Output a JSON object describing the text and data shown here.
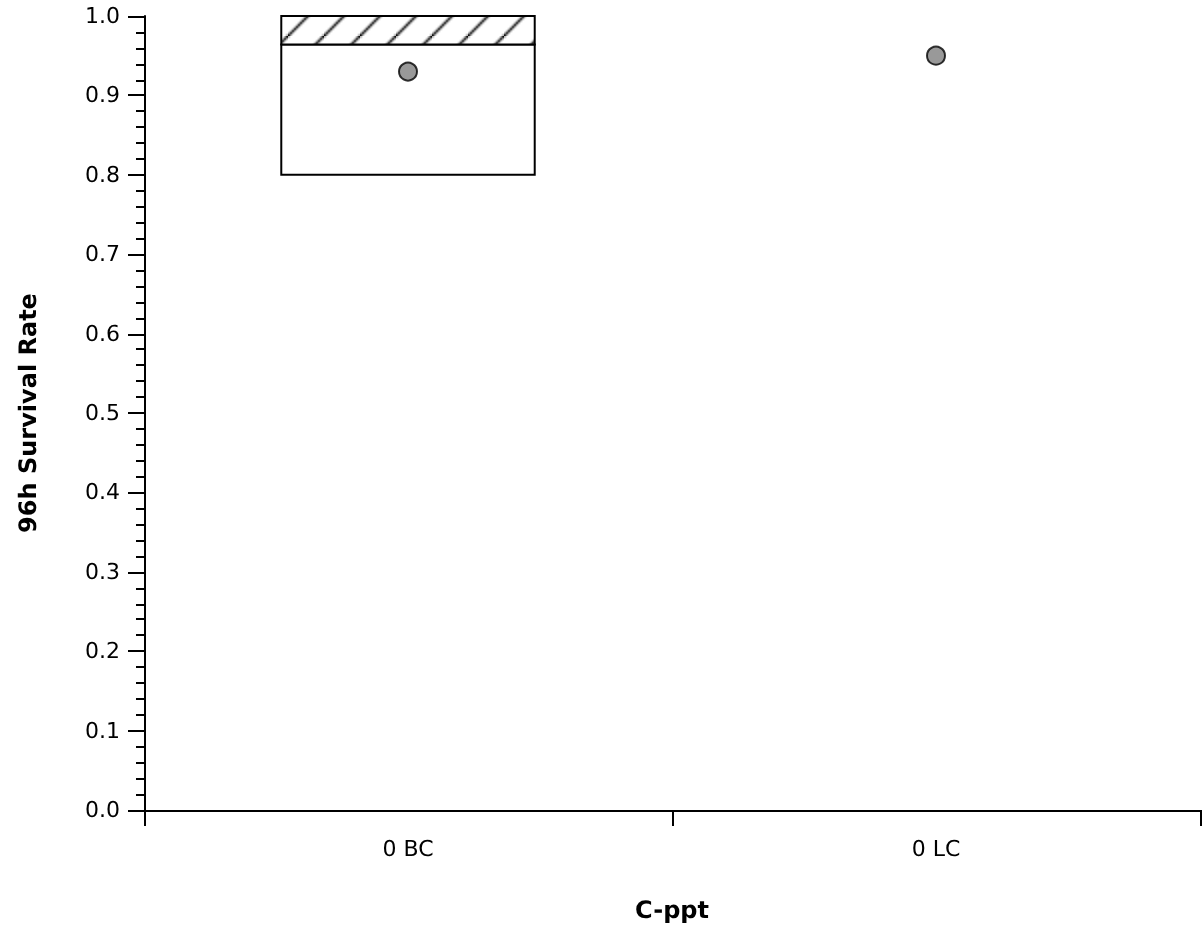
{
  "chart_data": {
    "type": "box",
    "xlabel": "C-ppt",
    "ylabel": "96h Survival Rate",
    "categories": [
      "0 BC",
      "0 LC"
    ],
    "boxes": [
      {
        "low": 0.8,
        "q1": 0.8,
        "median": 0.964,
        "q3": 1.0,
        "high": 1.0
      },
      null
    ],
    "series": [
      {
        "type": "scatter",
        "x": [
          "0 BC",
          "0 LC"
        ],
        "values": [
          0.93,
          0.95
        ],
        "color": "#808080",
        "marker": "circle"
      }
    ],
    "ylim": [
      0,
      1
    ],
    "yticks": [
      {
        "value": 0,
        "label": "0.0"
      },
      {
        "value": 0.1,
        "label": "0.1"
      },
      {
        "value": 0.2,
        "label": "0.2"
      },
      {
        "value": 0.3,
        "label": "0.3"
      },
      {
        "value": 0.4,
        "label": "0.4"
      },
      {
        "value": 0.5,
        "label": "0.5"
      },
      {
        "value": 0.6,
        "label": "0.6"
      },
      {
        "value": 0.7,
        "label": "0.7"
      },
      {
        "value": 0.8,
        "label": "0.8"
      },
      {
        "value": 0.9,
        "label": "0.9"
      },
      {
        "value": 1.0,
        "label": "1.0"
      }
    ],
    "grid": false
  }
}
